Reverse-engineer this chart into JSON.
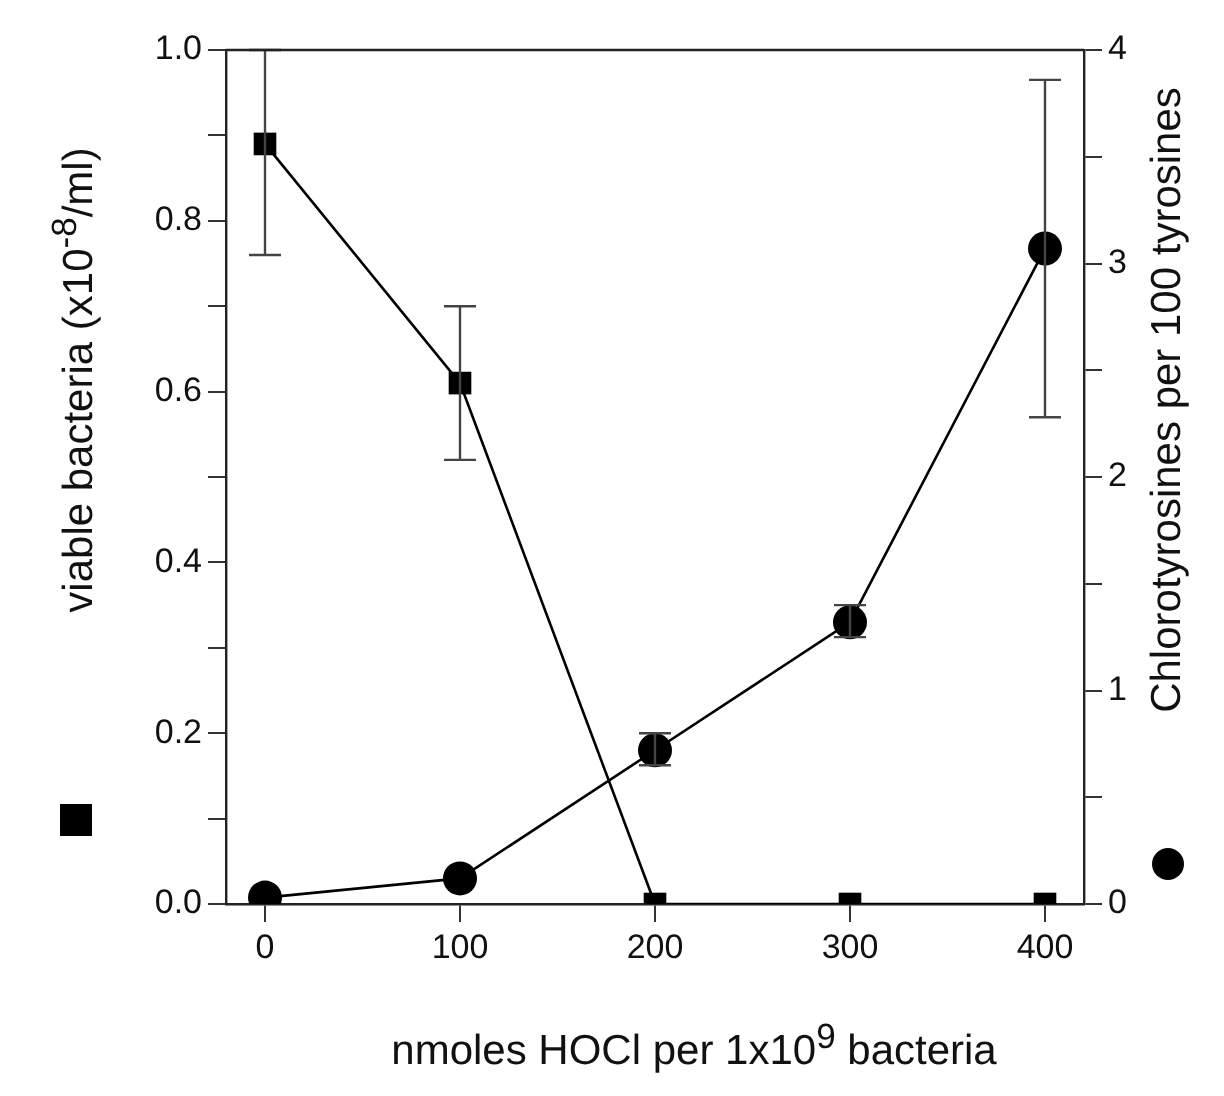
{
  "chart_data": {
    "type": "line",
    "xlabel": "nmoles HOCl per 1x10$^{9}$ bacteria",
    "ylabel": "viable bacteria (x10$^{-8}$/ml)",
    "y2label": "Chlorotyrosines per 100 tyrosines",
    "x": [
      0,
      100,
      200,
      300,
      400
    ],
    "series": [
      {
        "color": "#000000",
        "marker": "square",
        "values": [
          0.89,
          0.61,
          0,
          0,
          0
        ],
        "errors": [
          [
            0.76,
            1.0
          ],
          [
            0.52,
            0.7
          ],
          null,
          null,
          null
        ]
      },
      {
        "color": "#000000",
        "marker": "circle",
        "axis": "y2",
        "values": [
          0.03,
          0.12,
          0.72,
          1.32,
          3.07
        ],
        "errors": [
          null,
          null,
          [
            0.65,
            0.8
          ],
          [
            1.25,
            1.4
          ],
          [
            2.28,
            3.86
          ]
        ]
      }
    ],
    "xlim": [
      -20,
      420
    ],
    "xticks": [
      0,
      100,
      200,
      300,
      400
    ],
    "ylim": [
      0,
      1
    ],
    "yticks": [
      {
        "value": 0,
        "label": "0.0"
      },
      {
        "value": 0.1,
        "label": null
      },
      0.2,
      {
        "value": 0.3,
        "label": null
      },
      0.4,
      {
        "value": 0.5,
        "label": null
      },
      0.6,
      {
        "value": 0.7,
        "label": null
      },
      0.8,
      {
        "value": 0.9,
        "label": null
      },
      {
        "value": 1,
        "label": "1.0"
      }
    ],
    "y2lim": [
      0,
      4
    ],
    "y2ticks": [
      0,
      {
        "value": 0.5,
        "label": null
      },
      1,
      {
        "value": 1.5,
        "label": null
      },
      2,
      {
        "value": 2.5,
        "label": null
      },
      3,
      {
        "value": 3.5,
        "label": null
      },
      4
    ],
    "grid": false,
    "legend": false
  }
}
